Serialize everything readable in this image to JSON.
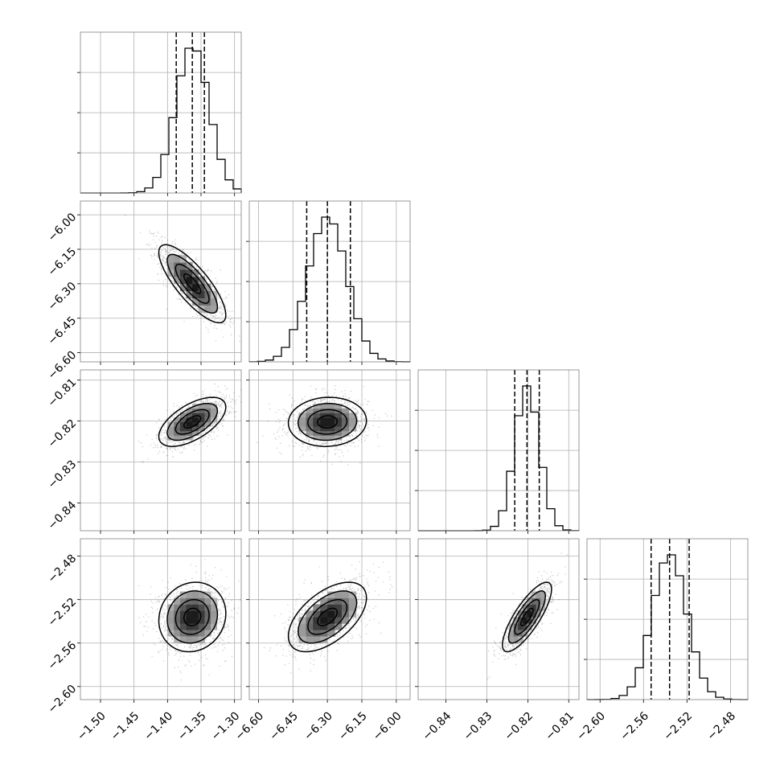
{
  "chart_data": {
    "type": "corner",
    "params": [
      {
        "mean": -1.363,
        "sd": 0.025,
        "quantiles": [
          -1.387,
          -1.363,
          -1.345
        ],
        "range": [
          -1.53,
          -1.29
        ],
        "ticks": [
          -1.5,
          -1.45,
          -1.4,
          -1.35,
          -1.3
        ],
        "tick_labels": [
          "−1.50",
          "−1.45",
          "−1.40",
          "−1.35",
          "−1.30"
        ]
      },
      {
        "mean": -6.3,
        "sd": 0.085,
        "quantiles": [
          -6.39,
          -6.3,
          -6.2
        ],
        "range": [
          -6.64,
          -5.94
        ],
        "ticks": [
          -6.6,
          -6.45,
          -6.3,
          -6.15,
          -6.0
        ],
        "tick_labels": [
          "−6.60",
          "−6.45",
          "−6.30",
          "−6.15",
          "−6.00"
        ]
      },
      {
        "mean": -0.8202,
        "sd": 0.003,
        "quantiles": [
          -0.8232,
          -0.8202,
          -0.8172
        ],
        "range": [
          -0.8468,
          -0.8075
        ],
        "ticks": [
          -0.84,
          -0.83,
          -0.82,
          -0.81
        ],
        "tick_labels": [
          "−0.84",
          "−0.83",
          "−0.82",
          "−0.81"
        ]
      },
      {
        "mean": -2.536,
        "sd": 0.016,
        "quantiles": [
          -2.553,
          -2.536,
          -2.518
        ],
        "range": [
          -2.612,
          -2.464
        ],
        "ticks": [
          -2.6,
          -2.56,
          -2.52,
          -2.48
        ],
        "tick_labels": [
          "−2.60",
          "−2.56",
          "−2.52",
          "−2.48"
        ]
      }
    ],
    "correlations": [
      [
        1.0,
        -0.8,
        0.6,
        0.1
      ],
      [
        -0.8,
        1.0,
        0.05,
        0.55
      ],
      [
        0.6,
        0.05,
        1.0,
        0.8
      ],
      [
        0.1,
        0.55,
        0.8,
        1.0
      ]
    ],
    "histogram_bins": 20,
    "contour_levels": [
      0.5,
      1.0,
      1.5,
      2.0
    ],
    "grid": true
  }
}
